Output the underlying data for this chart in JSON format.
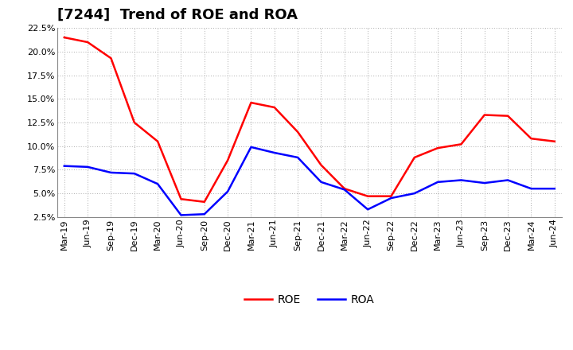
{
  "title": "[7244]  Trend of ROE and ROA",
  "labels": [
    "Mar-19",
    "Jun-19",
    "Sep-19",
    "Dec-19",
    "Mar-20",
    "Jun-20",
    "Sep-20",
    "Dec-20",
    "Mar-21",
    "Jun-21",
    "Sep-21",
    "Dec-21",
    "Mar-22",
    "Jun-22",
    "Sep-22",
    "Dec-22",
    "Mar-23",
    "Jun-23",
    "Sep-23",
    "Dec-23",
    "Mar-24",
    "Jun-24"
  ],
  "ROE": [
    21.5,
    21.0,
    19.3,
    12.5,
    10.5,
    4.4,
    4.1,
    8.5,
    14.6,
    14.1,
    11.5,
    8.0,
    5.5,
    4.7,
    4.7,
    8.8,
    9.8,
    10.2,
    13.3,
    13.2,
    10.8,
    10.5
  ],
  "ROA": [
    7.9,
    7.8,
    7.2,
    7.1,
    6.0,
    2.7,
    2.8,
    5.2,
    9.9,
    9.3,
    8.8,
    6.2,
    5.4,
    3.3,
    4.5,
    5.0,
    6.2,
    6.4,
    6.1,
    6.4,
    5.5,
    5.5
  ],
  "ROE_color": "#FF0000",
  "ROA_color": "#0000FF",
  "background_color": "#FFFFFF",
  "grid_color": "#AAAAAA",
  "ylim": [
    2.5,
    22.5
  ],
  "yticks": [
    2.5,
    5.0,
    7.5,
    10.0,
    12.5,
    15.0,
    17.5,
    20.0,
    22.5
  ],
  "line_width": 1.8,
  "title_fontsize": 13,
  "tick_fontsize": 8,
  "legend_fontsize": 10
}
